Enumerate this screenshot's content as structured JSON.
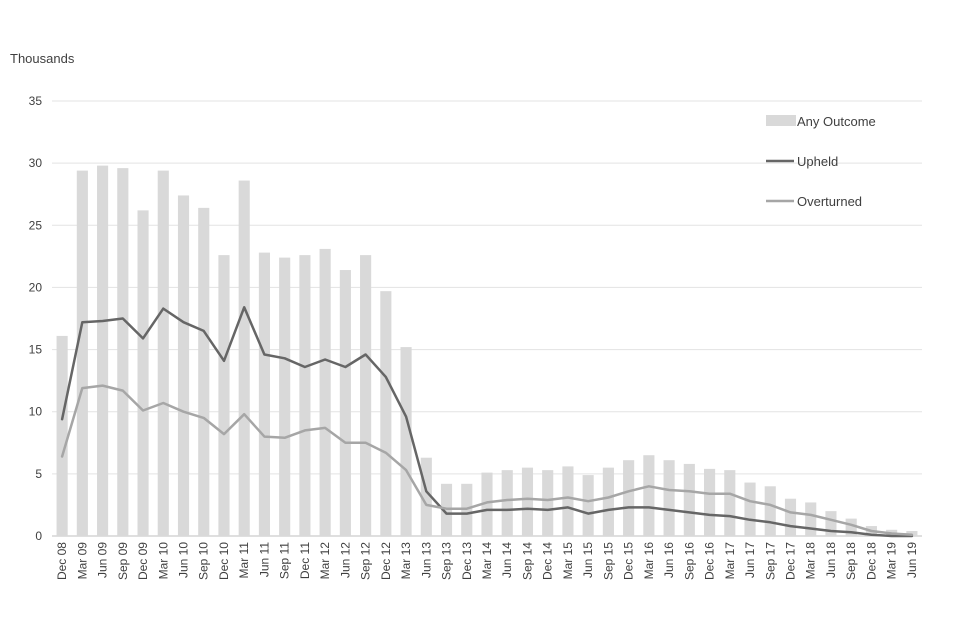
{
  "chart_data": {
    "type": "bar",
    "ylabel": "Thousands",
    "ylim": [
      0,
      35
    ],
    "yticks": [
      0,
      5,
      10,
      15,
      20,
      25,
      30,
      35
    ],
    "grid": true,
    "legend_position": "top-right",
    "categories": [
      "Dec 08",
      "Mar 09",
      "Jun 09",
      "Sep 09",
      "Dec 09",
      "Mar 10",
      "Jun 10",
      "Sep 10",
      "Dec 10",
      "Mar 11",
      "Jun 11",
      "Sep 11",
      "Dec 11",
      "Mar 12",
      "Jun 12",
      "Sep 12",
      "Dec 12",
      "Mar 13",
      "Jun 13",
      "Sep 13",
      "Dec 13",
      "Mar 14",
      "Jun 14",
      "Sep 14",
      "Dec 14",
      "Mar 15",
      "Jun 15",
      "Sep 15",
      "Dec 15",
      "Mar 16",
      "Jun 16",
      "Sep 16",
      "Dec 16",
      "Mar 17",
      "Jun 17",
      "Sep 17",
      "Dec 17",
      "Mar 18",
      "Jun 18",
      "Sep 18",
      "Dec 18",
      "Mar 19",
      "Jun 19"
    ],
    "series": [
      {
        "name": "Any Outcome",
        "kind": "bar",
        "color": "#d9d9d9",
        "values": [
          16.1,
          29.4,
          29.8,
          29.6,
          26.2,
          29.4,
          27.4,
          26.4,
          22.6,
          28.6,
          22.8,
          22.4,
          22.6,
          23.1,
          21.4,
          22.6,
          19.7,
          15.2,
          6.3,
          4.2,
          4.2,
          5.1,
          5.3,
          5.5,
          5.3,
          5.6,
          4.9,
          5.5,
          6.1,
          6.5,
          6.1,
          5.8,
          5.4,
          5.3,
          4.3,
          4.0,
          3.0,
          2.7,
          2.0,
          1.4,
          0.8,
          0.5,
          0.4
        ]
      },
      {
        "name": "Upheld",
        "kind": "line",
        "color": "#666666",
        "values": [
          9.4,
          17.2,
          17.3,
          17.5,
          15.9,
          18.3,
          17.2,
          16.5,
          14.1,
          18.4,
          14.6,
          14.3,
          13.6,
          14.2,
          13.6,
          14.6,
          12.8,
          9.6,
          3.6,
          1.8,
          1.8,
          2.1,
          2.1,
          2.2,
          2.1,
          2.3,
          1.8,
          2.1,
          2.3,
          2.3,
          2.1,
          1.9,
          1.7,
          1.6,
          1.3,
          1.1,
          0.8,
          0.6,
          0.4,
          0.3,
          0.1,
          0.0,
          0.0
        ]
      },
      {
        "name": "Overturned",
        "kind": "line",
        "color": "#a6a6a6",
        "values": [
          6.4,
          11.9,
          12.1,
          11.7,
          10.1,
          10.7,
          10.0,
          9.5,
          8.2,
          9.8,
          8.0,
          7.9,
          8.5,
          8.7,
          7.5,
          7.5,
          6.7,
          5.3,
          2.5,
          2.2,
          2.2,
          2.7,
          2.9,
          3.0,
          2.9,
          3.1,
          2.8,
          3.1,
          3.6,
          4.0,
          3.7,
          3.6,
          3.4,
          3.4,
          2.8,
          2.5,
          1.9,
          1.7,
          1.3,
          0.9,
          0.4,
          0.2,
          0.1
        ]
      }
    ]
  }
}
